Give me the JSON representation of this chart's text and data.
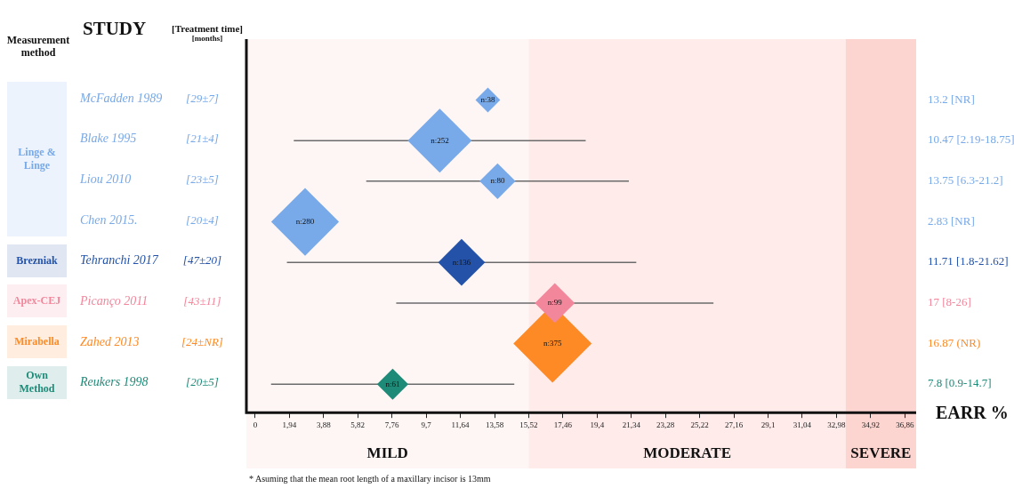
{
  "chart_data": {
    "type": "bubble",
    "orientation": "horizontal",
    "marker": "diamond",
    "legend": "left",
    "legend_title": "Measurement method",
    "ylabel": "STUDY",
    "y2label": "[Treatment time]\n[months]",
    "xlabel": "EARR %",
    "categories": [
      "McFadden 1989",
      "Blake 1995",
      "Liou 2010",
      "Chen  2015.",
      "Tehranchi 2017",
      "Picanço 2011",
      "Zahed 2013",
      "Reukers 1998"
    ],
    "y2_categories": [
      "13.2 [NR]",
      "10.47 [2.19-18.75]",
      "13.75 [6.3-21.2]",
      "2.83 [NR]",
      "11.71 [1.8-21.62]",
      "17 [8-26]",
      "16.87 (NR)",
      "7.8 [0.9-14.7]"
    ],
    "xlim": [
      -0.5,
      37.5
    ],
    "xticks": [
      0,
      {
        "value": 1.94,
        "label": "1,94"
      },
      {
        "value": 3.88,
        "label": "3,88"
      },
      {
        "value": 5.82,
        "label": "5,82"
      },
      {
        "value": 7.76,
        "label": "7,76"
      },
      {
        "value": 9.7,
        "label": "9,7"
      },
      {
        "value": 11.64,
        "label": "11,64"
      },
      {
        "value": 13.58,
        "label": "13,58"
      },
      {
        "value": 15.52,
        "label": "15,52"
      },
      {
        "value": 17.46,
        "label": "17,46"
      },
      {
        "value": 19.4,
        "label": "19,4"
      },
      {
        "value": 21.34,
        "label": "21,34"
      },
      {
        "value": 23.28,
        "label": "23,28"
      },
      {
        "value": 25.22,
        "label": "25,22"
      },
      {
        "value": 27.16,
        "label": "27,16"
      },
      {
        "value": 29.1,
        "label": "29,1"
      },
      {
        "value": 31.04,
        "label": "31,04"
      },
      {
        "value": 32.98,
        "label": "32,98"
      },
      {
        "value": 34.92,
        "label": "34,92"
      },
      {
        "value": 36.86,
        "label": "36,86"
      }
    ],
    "series": [
      {
        "name": "Linge & Linge",
        "color": "#78a9e8",
        "values": [
          13.2,
          10.47,
          13.75,
          2.83,
          null,
          null,
          null,
          null
        ],
        "errors": [
          null,
          [
            2.19,
            18.75
          ],
          [
            6.3,
            21.2
          ],
          null,
          null,
          null,
          null,
          null
        ],
        "sizes": [
          0.1,
          0.67,
          0.21,
          0.75,
          null,
          null,
          null,
          null
        ]
      },
      {
        "name": "Brezniak",
        "color": "#2352a8",
        "values": [
          null,
          null,
          null,
          null,
          11.71,
          null,
          null,
          null
        ],
        "errors": [
          null,
          null,
          null,
          null,
          [
            1.8,
            21.62
          ],
          null,
          null,
          null
        ],
        "sizes": [
          null,
          null,
          null,
          null,
          0.36,
          null,
          null,
          null
        ]
      },
      {
        "name": "Apex-CEJ",
        "color": "#f2879c",
        "values": [
          null,
          null,
          null,
          null,
          null,
          17,
          null,
          null
        ],
        "errors": [
          null,
          null,
          null,
          null,
          null,
          [
            8,
            26
          ],
          null,
          null
        ],
        "sizes": [
          null,
          null,
          null,
          null,
          null,
          0.26,
          null,
          null
        ]
      },
      {
        "name": "Mirabella",
        "color": "#fd8a25",
        "values": [
          null,
          null,
          null,
          null,
          null,
          null,
          16.87,
          null
        ],
        "sizes": [
          null,
          null,
          null,
          null,
          null,
          null,
          1,
          null
        ]
      },
      {
        "name": "Own Method",
        "color": "#1e8a78",
        "values": [
          null,
          null,
          null,
          null,
          null,
          null,
          null,
          7.8
        ],
        "errors": [
          null,
          null,
          null,
          null,
          null,
          null,
          null,
          [
            0.9,
            14.7
          ]
        ],
        "sizes": [
          null,
          null,
          null,
          null,
          null,
          null,
          null,
          0.16
        ]
      }
    ],
    "bands": [
      {
        "axis": "x",
        "from": -0.5,
        "to": 15.52,
        "label": "MILD",
        "color": "#fdf6f5"
      },
      {
        "axis": "x",
        "from": 15.52,
        "to": 33.5,
        "label": "MODERATE",
        "color": "#feebea"
      },
      {
        "axis": "x",
        "from": 33.5,
        "to": 37.5,
        "label": "SEVERE",
        "color": "#fdd5d0"
      }
    ],
    "annotations": [
      {
        "text": "n:38",
        "x": 13.2,
        "y": "McFadden 1989"
      },
      {
        "text": "n:252",
        "x": 10.47,
        "y": "Blake 1995"
      },
      {
        "text": "n:80",
        "x": 13.75,
        "y": "Liou 2010"
      },
      {
        "text": "n:280",
        "x": 2.83,
        "y": "Chen  2015."
      },
      {
        "text": "n:136",
        "x": 11.71,
        "y": "Tehranchi 2017"
      },
      {
        "text": "n:99",
        "x": 17,
        "y": "Picanço 2011"
      },
      {
        "text": "n:375",
        "x": 16.87,
        "y": "Zahed 2013"
      },
      {
        "text": "n:61",
        "x": 7.8,
        "y": "Reukers 1998"
      },
      "[29±7]",
      "[21±4]",
      "[23±5]",
      "[20±4]",
      "[47±20]",
      "[43±11]",
      "[24±NR]",
      "[20±5]",
      "* Asuming that the mean root length of a maxillary incisor is 13mm"
    ]
  }
}
